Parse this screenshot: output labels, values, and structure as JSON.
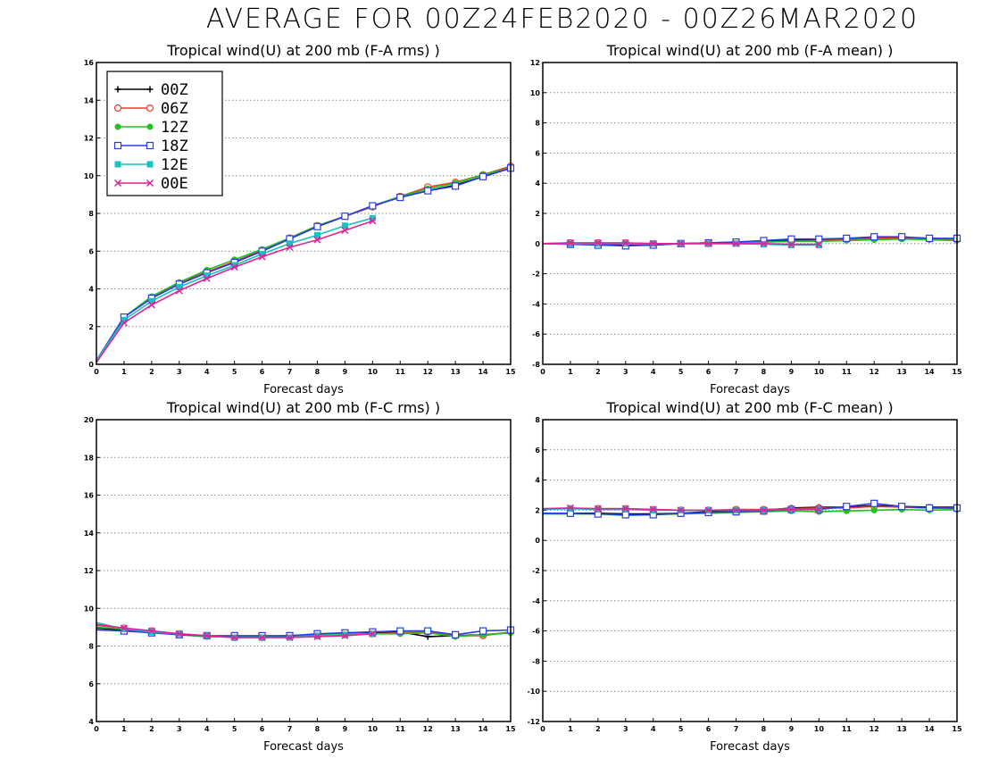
{
  "title": "AVERAGE FOR 00Z24FEB2020 - 00Z26MAR2020",
  "legend": [
    {
      "label": "00Z",
      "color": "#000000",
      "marker": "plus"
    },
    {
      "label": "06Z",
      "color": "#e8402f",
      "marker": "open-circle"
    },
    {
      "label": "12Z",
      "color": "#1fc41f",
      "marker": "filled-circle"
    },
    {
      "label": "18Z",
      "color": "#2a3de0",
      "marker": "open-square"
    },
    {
      "label": "12E",
      "color": "#19c2c2",
      "marker": "filled-square"
    },
    {
      "label": "00E",
      "color": "#e0229a",
      "marker": "x"
    }
  ],
  "chart_data": [
    {
      "type": "line",
      "title": "Tropical wind(U) at 200 mb (F-A rms) )",
      "xlabel": "Forecast days",
      "ylabel": "",
      "xlim": [
        0,
        15
      ],
      "ylim": [
        0,
        16
      ],
      "xticks": [
        "0",
        "1",
        "2",
        "3",
        "4",
        "5",
        "6",
        "7",
        "8",
        "9",
        "10",
        "11",
        "12",
        "13",
        "14",
        "15"
      ],
      "yticks": [
        "0",
        "2",
        "4",
        "6",
        "8",
        "10",
        "12",
        "14",
        "16"
      ],
      "grid": "horizontal dotted",
      "legend_position": "top-left",
      "series": [
        {
          "name": "00Z",
          "x": [
            0,
            1,
            2,
            3,
            4,
            5,
            6,
            7,
            8,
            9,
            10,
            11,
            12,
            13,
            14,
            15
          ],
          "y": [
            0.2,
            2.5,
            3.55,
            4.3,
            4.9,
            5.4,
            6.0,
            6.65,
            7.3,
            7.85,
            8.4,
            8.85,
            9.2,
            9.5,
            9.95,
            10.4
          ]
        },
        {
          "name": "06Z",
          "x": [
            0,
            1,
            2,
            3,
            4,
            5,
            6,
            7,
            8,
            9,
            10,
            11,
            12,
            13,
            14,
            15
          ],
          "y": [
            0.2,
            2.5,
            3.55,
            4.3,
            4.9,
            5.45,
            6.05,
            6.7,
            7.35,
            7.85,
            8.35,
            8.9,
            9.4,
            9.65,
            10.05,
            10.5
          ]
        },
        {
          "name": "12Z",
          "x": [
            0,
            1,
            2,
            3,
            4,
            5,
            6,
            7,
            8,
            9,
            10,
            11,
            12,
            13,
            14,
            15
          ],
          "y": [
            0.2,
            2.5,
            3.6,
            4.35,
            5.0,
            5.55,
            6.1,
            6.7,
            7.35,
            7.85,
            8.4,
            8.9,
            9.3,
            9.6,
            10.05,
            10.4
          ]
        },
        {
          "name": "18Z",
          "x": [
            0,
            1,
            2,
            3,
            4,
            5,
            6,
            7,
            8,
            9,
            10,
            11,
            12,
            13,
            14,
            15
          ],
          "y": [
            0.2,
            2.5,
            3.5,
            4.25,
            4.85,
            5.4,
            6.0,
            6.65,
            7.3,
            7.85,
            8.4,
            8.85,
            9.2,
            9.45,
            9.95,
            10.4
          ]
        },
        {
          "name": "12E",
          "x": [
            0,
            1,
            2,
            3,
            4,
            5,
            6,
            7,
            8,
            9,
            10
          ],
          "y": [
            0.2,
            2.35,
            3.35,
            4.1,
            4.7,
            5.25,
            5.85,
            6.4,
            6.85,
            7.35,
            7.75
          ]
        },
        {
          "name": "00E",
          "x": [
            0,
            1,
            2,
            3,
            4,
            5,
            6,
            7,
            8,
            9,
            10
          ],
          "y": [
            0.1,
            2.2,
            3.15,
            3.9,
            4.55,
            5.15,
            5.7,
            6.2,
            6.6,
            7.1,
            7.6
          ]
        }
      ]
    },
    {
      "type": "line",
      "title": "Tropical wind(U) at 200 mb (F-A mean) )",
      "xlabel": "Forecast days",
      "ylabel": "",
      "xlim": [
        0,
        15
      ],
      "ylim": [
        -8,
        12
      ],
      "xticks": [
        "0",
        "1",
        "2",
        "3",
        "4",
        "5",
        "6",
        "7",
        "8",
        "9",
        "10",
        "11",
        "12",
        "13",
        "14",
        "15"
      ],
      "yticks": [
        "-8",
        "-6",
        "-4",
        "-2",
        "0",
        "2",
        "4",
        "6",
        "8",
        "10",
        "12"
      ],
      "grid": "horizontal dotted",
      "series": [
        {
          "name": "00Z",
          "x": [
            0,
            1,
            2,
            3,
            4,
            5,
            6,
            7,
            8,
            9,
            10,
            11,
            12,
            13,
            14,
            15
          ],
          "y": [
            0.0,
            0.0,
            -0.05,
            -0.1,
            -0.1,
            0.0,
            0.05,
            0.1,
            0.15,
            0.25,
            0.25,
            0.3,
            0.4,
            0.4,
            0.35,
            0.3
          ]
        },
        {
          "name": "06Z",
          "x": [
            0,
            1,
            2,
            3,
            4,
            5,
            6,
            7,
            8,
            9,
            10,
            11,
            12,
            13,
            14,
            15
          ],
          "y": [
            0.0,
            0.05,
            0.05,
            0.05,
            0.0,
            0.0,
            0.0,
            0.05,
            0.1,
            0.15,
            0.2,
            0.25,
            0.35,
            0.35,
            0.3,
            0.3
          ]
        },
        {
          "name": "12Z",
          "x": [
            0,
            1,
            2,
            3,
            4,
            5,
            6,
            7,
            8,
            9,
            10,
            11,
            12,
            13,
            14,
            15
          ],
          "y": [
            0.0,
            0.0,
            0.0,
            0.0,
            0.0,
            0.0,
            0.05,
            0.05,
            0.1,
            0.15,
            0.15,
            0.2,
            0.25,
            0.3,
            0.25,
            0.2
          ]
        },
        {
          "name": "18Z",
          "x": [
            0,
            1,
            2,
            3,
            4,
            5,
            6,
            7,
            8,
            9,
            10,
            11,
            12,
            13,
            14,
            15
          ],
          "y": [
            0.0,
            -0.05,
            -0.1,
            -0.15,
            -0.1,
            0.0,
            0.05,
            0.1,
            0.2,
            0.3,
            0.3,
            0.35,
            0.45,
            0.45,
            0.35,
            0.35
          ]
        },
        {
          "name": "12E",
          "x": [
            0,
            1,
            2,
            3,
            4,
            5,
            6,
            7,
            8,
            9,
            10
          ],
          "y": [
            0.0,
            0.0,
            0.0,
            0.0,
            0.0,
            0.0,
            0.0,
            0.0,
            -0.05,
            -0.1,
            -0.1
          ]
        },
        {
          "name": "00E",
          "x": [
            0,
            1,
            2,
            3,
            4,
            5,
            6,
            7,
            8,
            9,
            10
          ],
          "y": [
            0.0,
            0.05,
            0.05,
            0.05,
            0.0,
            0.0,
            0.0,
            0.0,
            0.0,
            -0.05,
            -0.05
          ]
        }
      ]
    },
    {
      "type": "line",
      "title": "Tropical wind(U) at 200 mb (F-C rms) )",
      "xlabel": "Forecast days",
      "ylabel": "",
      "xlim": [
        0,
        15
      ],
      "ylim": [
        4,
        20
      ],
      "xticks": [
        "0",
        "1",
        "2",
        "3",
        "4",
        "5",
        "6",
        "7",
        "8",
        "9",
        "10",
        "11",
        "12",
        "13",
        "14",
        "15"
      ],
      "yticks": [
        "4",
        "6",
        "8",
        "10",
        "12",
        "14",
        "16",
        "18",
        "20"
      ],
      "grid": "horizontal dotted",
      "series": [
        {
          "name": "00Z",
          "x": [
            0,
            1,
            2,
            3,
            4,
            5,
            6,
            7,
            8,
            9,
            10,
            11,
            12,
            13,
            14,
            15
          ],
          "y": [
            8.95,
            8.85,
            8.75,
            8.6,
            8.5,
            8.5,
            8.5,
            8.55,
            8.6,
            8.7,
            8.7,
            8.75,
            8.5,
            8.55,
            8.6,
            8.7
          ]
        },
        {
          "name": "06Z",
          "x": [
            0,
            1,
            2,
            3,
            4,
            5,
            6,
            7,
            8,
            9,
            10,
            11,
            12,
            13,
            14,
            15
          ],
          "y": [
            9.1,
            8.95,
            8.8,
            8.65,
            8.55,
            8.45,
            8.45,
            8.5,
            8.55,
            8.6,
            8.65,
            8.7,
            8.75,
            8.55,
            8.55,
            8.75
          ]
        },
        {
          "name": "12Z",
          "x": [
            0,
            1,
            2,
            3,
            4,
            5,
            6,
            7,
            8,
            9,
            10,
            11,
            12,
            13,
            14,
            15
          ],
          "y": [
            9.0,
            8.9,
            8.75,
            8.6,
            8.5,
            8.5,
            8.5,
            8.55,
            8.6,
            8.65,
            8.65,
            8.65,
            8.7,
            8.5,
            8.6,
            8.7
          ]
        },
        {
          "name": "18Z",
          "x": [
            0,
            1,
            2,
            3,
            4,
            5,
            6,
            7,
            8,
            9,
            10,
            11,
            12,
            13,
            14,
            15
          ],
          "y": [
            8.85,
            8.8,
            8.7,
            8.6,
            8.55,
            8.55,
            8.55,
            8.55,
            8.65,
            8.7,
            8.75,
            8.8,
            8.8,
            8.6,
            8.8,
            8.85
          ]
        },
        {
          "name": "12E",
          "x": [
            0,
            1,
            2,
            3,
            4,
            5,
            6,
            7,
            8,
            9,
            10
          ],
          "y": [
            9.25,
            8.9,
            8.75,
            8.65,
            8.55,
            8.45,
            8.45,
            8.45,
            8.55,
            8.6,
            8.65
          ]
        },
        {
          "name": "00E",
          "x": [
            0,
            1,
            2,
            3,
            4,
            5,
            6,
            7,
            8,
            9,
            10
          ],
          "y": [
            9.15,
            8.95,
            8.8,
            8.65,
            8.55,
            8.45,
            8.45,
            8.45,
            8.5,
            8.55,
            8.65
          ]
        }
      ]
    },
    {
      "type": "line",
      "title": "Tropical wind(U) at 200 mb (F-C mean) )",
      "xlabel": "Forecast days",
      "ylabel": "",
      "xlim": [
        0,
        15
      ],
      "ylim": [
        -12,
        8
      ],
      "xticks": [
        "0",
        "1",
        "2",
        "3",
        "4",
        "5",
        "6",
        "7",
        "8",
        "9",
        "10",
        "11",
        "12",
        "13",
        "14",
        "15"
      ],
      "yticks": [
        "-12",
        "-10",
        "-8",
        "-6",
        "-4",
        "-2",
        "0",
        "2",
        "4",
        "6",
        "8"
      ],
      "grid": "horizontal dotted",
      "series": [
        {
          "name": "00Z",
          "x": [
            0,
            1,
            2,
            3,
            4,
            5,
            6,
            7,
            8,
            9,
            10,
            11,
            12,
            13,
            14,
            15
          ],
          "y": [
            1.8,
            1.8,
            1.8,
            1.75,
            1.75,
            1.8,
            1.9,
            1.95,
            2.0,
            2.15,
            2.2,
            2.2,
            2.3,
            2.25,
            2.2,
            2.2
          ]
        },
        {
          "name": "06Z",
          "x": [
            0,
            1,
            2,
            3,
            4,
            5,
            6,
            7,
            8,
            9,
            10,
            11,
            12,
            13,
            14,
            15
          ],
          "y": [
            2.1,
            2.1,
            2.1,
            2.1,
            2.05,
            2.0,
            2.0,
            2.05,
            2.05,
            2.1,
            2.15,
            2.15,
            2.25,
            2.2,
            2.15,
            2.15
          ]
        },
        {
          "name": "12Z",
          "x": [
            0,
            1,
            2,
            3,
            4,
            5,
            6,
            7,
            8,
            9,
            10,
            11,
            12,
            13,
            14,
            15
          ],
          "y": [
            1.75,
            1.75,
            1.75,
            1.65,
            1.7,
            1.75,
            1.8,
            1.85,
            1.9,
            1.95,
            1.9,
            1.95,
            2.0,
            2.05,
            2.0,
            2.05
          ]
        },
        {
          "name": "18Z",
          "x": [
            0,
            1,
            2,
            3,
            4,
            5,
            6,
            7,
            8,
            9,
            10,
            11,
            12,
            13,
            14,
            15
          ],
          "y": [
            1.8,
            1.8,
            1.75,
            1.7,
            1.7,
            1.8,
            1.85,
            1.9,
            1.95,
            2.05,
            2.05,
            2.25,
            2.45,
            2.25,
            2.15,
            2.15
          ]
        },
        {
          "name": "12E",
          "x": [
            0,
            1,
            2,
            3,
            4,
            5,
            6,
            7,
            8,
            9,
            10
          ],
          "y": [
            2.05,
            2.1,
            2.05,
            2.05,
            2.0,
            2.0,
            2.0,
            2.0,
            2.0,
            2.05,
            2.05
          ]
        },
        {
          "name": "00E",
          "x": [
            0,
            1,
            2,
            3,
            4,
            5,
            6,
            7,
            8,
            9,
            10
          ],
          "y": [
            2.1,
            2.15,
            2.1,
            2.1,
            2.05,
            2.0,
            2.0,
            2.0,
            2.0,
            2.05,
            2.05
          ]
        }
      ]
    }
  ]
}
